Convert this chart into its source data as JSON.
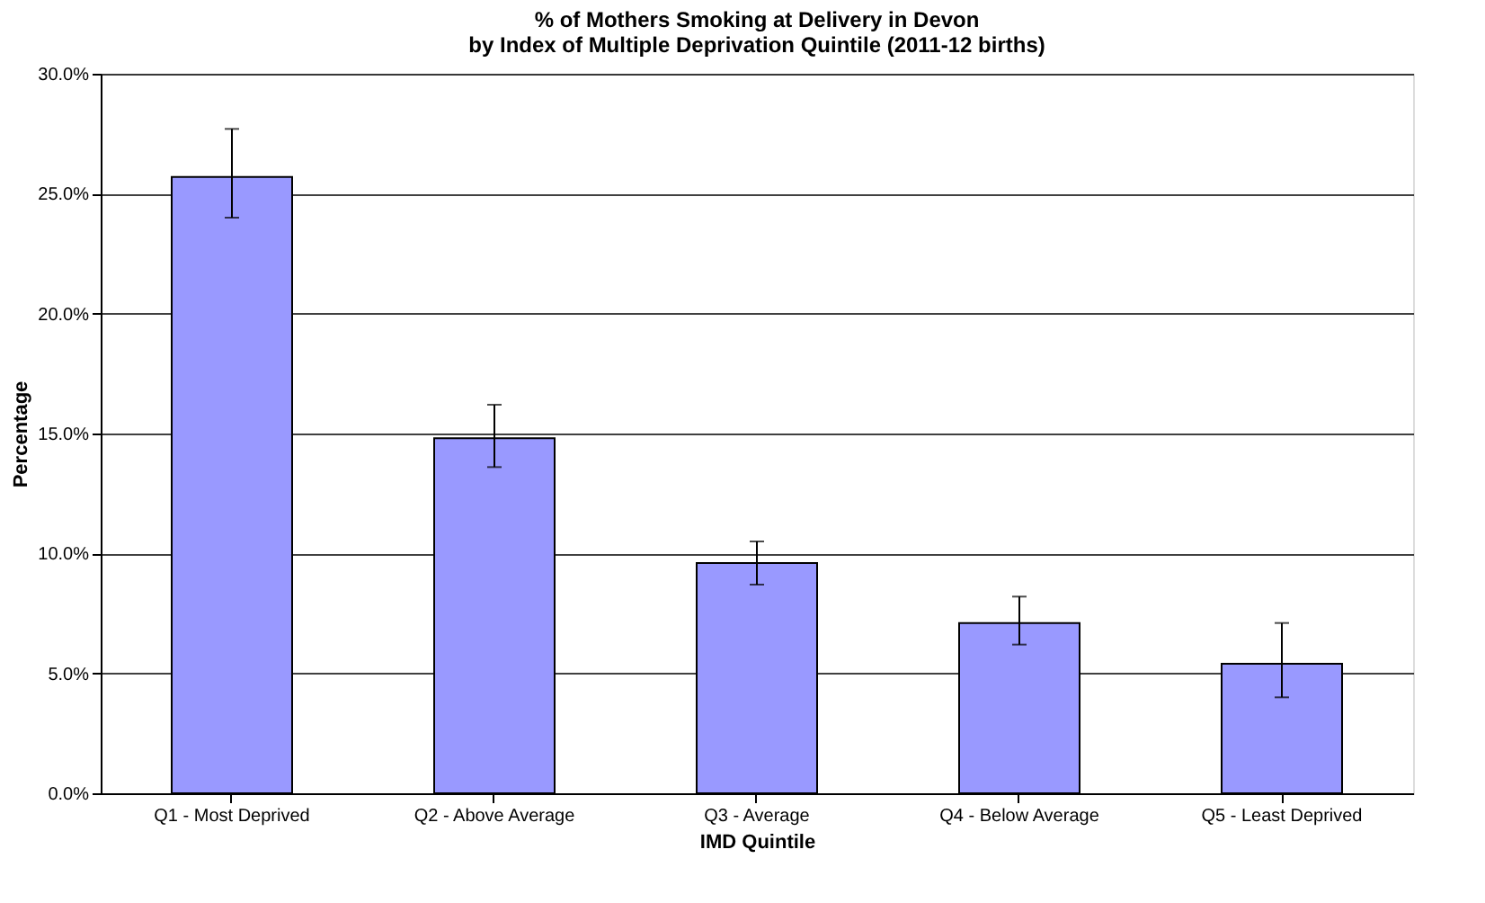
{
  "chart_data": {
    "type": "bar",
    "title": [
      "% of Mothers Smoking at Delivery in Devon",
      "by Index of Multiple Deprivation Quintile (2011-12 births)"
    ],
    "xlabel": "IMD Quintile",
    "ylabel": "Percentage",
    "categories": [
      "Q1 - Most Deprived",
      "Q2 - Above Average",
      "Q3 - Average",
      "Q4 - Below Average",
      "Q5 - Least Deprived"
    ],
    "values": [
      25.7,
      14.8,
      9.6,
      7.1,
      5.4
    ],
    "errors": [
      [
        24.0,
        27.7
      ],
      [
        13.6,
        16.2
      ],
      [
        8.7,
        10.5
      ],
      [
        6.2,
        8.2
      ],
      [
        4.0,
        7.1
      ]
    ],
    "color": "#9999ff",
    "ylim": [
      0,
      30
    ],
    "yticks": [
      {
        "value": 0,
        "label": "0.0%"
      },
      {
        "value": 5,
        "label": "5.0%"
      },
      {
        "value": 10,
        "label": "10.0%"
      },
      {
        "value": 15,
        "label": "15.0%"
      },
      {
        "value": 20,
        "label": "20.0%"
      },
      {
        "value": 25,
        "label": "25.0%"
      },
      {
        "value": 30,
        "label": "30.0%"
      }
    ],
    "grid": "y"
  }
}
